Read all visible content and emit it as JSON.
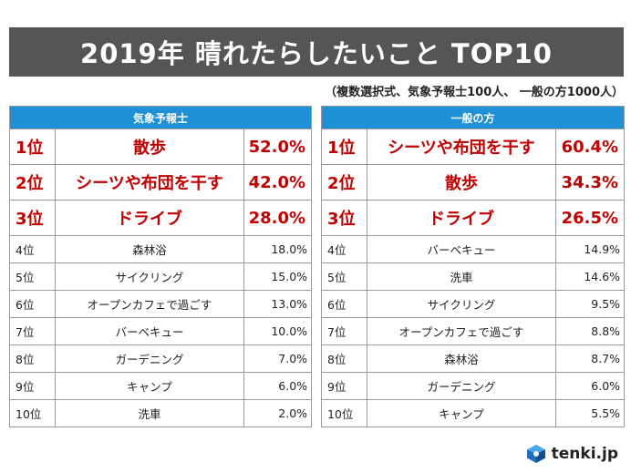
{
  "title": "2019年 晴れたらしたいこと TOP10",
  "subtitle": "（複数選択式、気象予報士100人、 一般の方1000人）",
  "colors": {
    "header_blue": "#1f8fd6",
    "top_red": "#c00000",
    "title_gray": "#555555"
  },
  "logo": {
    "text": "tenki.jp",
    "icon": "tenki-logo-icon"
  },
  "chart_data": [
    {
      "type": "table",
      "title": "気象予報士",
      "columns": [
        "rank",
        "activity",
        "percent"
      ],
      "rows": [
        {
          "rank": "1位",
          "name": "散歩",
          "pct": "52.0%"
        },
        {
          "rank": "2位",
          "name": "シーツや布団を干す",
          "pct": "42.0%"
        },
        {
          "rank": "3位",
          "name": "ドライブ",
          "pct": "28.0%"
        },
        {
          "rank": "4位",
          "name": "森林浴",
          "pct": "18.0%"
        },
        {
          "rank": "5位",
          "name": "サイクリング",
          "pct": "15.0%"
        },
        {
          "rank": "6位",
          "name": "オープンカフェで過ごす",
          "pct": "13.0%"
        },
        {
          "rank": "7位",
          "name": "バーベキュー",
          "pct": "10.0%"
        },
        {
          "rank": "8位",
          "name": "ガーデニング",
          "pct": "7.0%"
        },
        {
          "rank": "9位",
          "name": "キャンプ",
          "pct": "6.0%"
        },
        {
          "rank": "10位",
          "name": "洗車",
          "pct": "2.0%"
        }
      ]
    },
    {
      "type": "table",
      "title": "一般の方",
      "columns": [
        "rank",
        "activity",
        "percent"
      ],
      "rows": [
        {
          "rank": "1位",
          "name": "シーツや布団を干す",
          "pct": "60.4%"
        },
        {
          "rank": "2位",
          "name": "散歩",
          "pct": "34.3%"
        },
        {
          "rank": "3位",
          "name": "ドライブ",
          "pct": "26.5%"
        },
        {
          "rank": "4位",
          "name": "バーベキュー",
          "pct": "14.9%"
        },
        {
          "rank": "5位",
          "name": "洗車",
          "pct": "14.6%"
        },
        {
          "rank": "6位",
          "name": "サイクリング",
          "pct": "9.5%"
        },
        {
          "rank": "7位",
          "name": "オープンカフェで過ごす",
          "pct": "8.8%"
        },
        {
          "rank": "8位",
          "name": "森林浴",
          "pct": "8.7%"
        },
        {
          "rank": "9位",
          "name": "ガーデニング",
          "pct": "6.0%"
        },
        {
          "rank": "10位",
          "name": "キャンプ",
          "pct": "5.5%"
        }
      ]
    }
  ]
}
